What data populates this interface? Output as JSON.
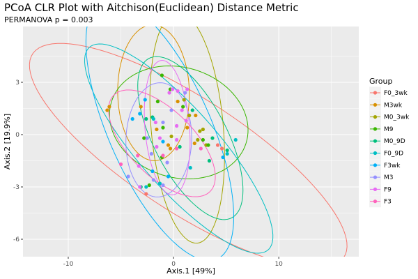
{
  "chart_data": {
    "type": "scatter",
    "title": "PCoA CLR Plot with Aitchison(Euclidean) Distance Metric",
    "subtitle": "PERMANOVA p = 0.003",
    "xlabel": "Axis.1  [49%]",
    "ylabel": "Axis.2  [19.9%]",
    "xlim": [
      -14.3,
      17.6
    ],
    "ylim": [
      -7.0,
      6.2
    ],
    "xticks": [
      -10,
      0,
      10
    ],
    "xtick_labels": [
      "-10",
      "0",
      "10"
    ],
    "yticks": [
      -6,
      -3,
      0,
      3
    ],
    "ytick_labels": [
      "-6",
      "-3",
      "0",
      "3"
    ],
    "grid": true,
    "legend": {
      "title": "Group",
      "position": "right"
    },
    "series": [
      {
        "name": "F0_3wk",
        "color": "#F8766D",
        "points": [
          [
            -2.6,
            -3.4
          ],
          [
            4.2,
            -0.6
          ],
          [
            4.6,
            -0.8
          ]
        ],
        "ellipse": {
          "cx": 1.4,
          "cy": -1.2,
          "rx": 16.0,
          "ry": 3.6,
          "angle": -20
        }
      },
      {
        "name": "M3wk",
        "color": "#D89000",
        "points": [
          [
            -6.3,
            1.4
          ],
          [
            -6.1,
            1.6
          ],
          [
            -3.1,
            1.6
          ],
          [
            0.4,
            1.9
          ],
          [
            2.1,
            1.1
          ],
          [
            1.3,
            0.4
          ],
          [
            2.0,
            -0.5
          ],
          [
            -0.5,
            -0.6
          ],
          [
            -0.3,
            -0.8
          ],
          [
            -1.6,
            0.3
          ]
        ],
        "ellipse": {
          "cx": -1.9,
          "cy": 2.4,
          "rx": 3.4,
          "ry": 3.9,
          "angle": 5
        }
      },
      {
        "name": "M0_3wk",
        "color": "#A3A500",
        "points": [
          [
            1.0,
            2.0
          ],
          [
            1.5,
            1.1
          ],
          [
            2.5,
            0.2
          ],
          [
            2.8,
            0.3
          ],
          [
            3.1,
            -0.6
          ],
          [
            -0.2,
            -0.1
          ],
          [
            2.3,
            -0.3
          ]
        ],
        "ellipse": {
          "cx": 1.3,
          "cy": 0.4,
          "rx": 3.4,
          "ry": 6.7,
          "angle": 10
        }
      },
      {
        "name": "M9",
        "color": "#39B600",
        "points": [
          [
            -1.1,
            3.4
          ],
          [
            -0.3,
            2.6
          ],
          [
            -1.5,
            1.9
          ],
          [
            0.9,
            1.6
          ],
          [
            -2.8,
            -0.2
          ],
          [
            -1.0,
            0.4
          ],
          [
            2.8,
            -0.3
          ],
          [
            -1.1,
            -1.3
          ],
          [
            -2.3,
            -2.9
          ],
          [
            3.3,
            -0.6
          ]
        ],
        "ellipse": {
          "cx": 0.5,
          "cy": 0.7,
          "rx": 6.6,
          "ry": 3.2,
          "angle": -5
        }
      },
      {
        "name": "M0_9D",
        "color": "#00BF7D",
        "points": [
          [
            1.8,
            1.4
          ],
          [
            -2.6,
            0.9
          ],
          [
            -2.0,
            1.0
          ],
          [
            0.6,
            -0.7
          ],
          [
            3.7,
            -0.2
          ],
          [
            5.1,
            -0.9
          ],
          [
            -3.1,
            -3.0
          ],
          [
            3.4,
            -1.5
          ]
        ],
        "ellipse": {
          "cx": 1.6,
          "cy": -0.2,
          "rx": 6.2,
          "ry": 2.9,
          "angle": -42
        }
      },
      {
        "name": "F0_9D",
        "color": "#00BFC4",
        "points": [
          [
            -1.9,
            0.9
          ],
          [
            5.9,
            -0.3
          ],
          [
            1.6,
            -1.9
          ],
          [
            5.1,
            -1.1
          ],
          [
            -1.3,
            -2.8
          ],
          [
            -2.6,
            -3.0
          ]
        ],
        "ellipse": {
          "cx": 0.5,
          "cy": -0.8,
          "rx": 10.4,
          "ry": 2.8,
          "angle": -32
        }
      },
      {
        "name": "F3wk",
        "color": "#00B0F6",
        "points": [
          [
            -2.7,
            2.0
          ],
          [
            -3.2,
            1.2
          ],
          [
            -3.9,
            0.9
          ],
          [
            -1.0,
            -0.4
          ],
          [
            -2.0,
            -2.1
          ],
          [
            -0.5,
            -2.4
          ],
          [
            4.7,
            -1.3
          ]
        ],
        "ellipse": {
          "cx": -1.3,
          "cy": 0.3,
          "rx": 9.4,
          "ry": 4.2,
          "angle": -48
        }
      },
      {
        "name": "M3",
        "color": "#9590FF",
        "points": [
          [
            1.1,
            2.4
          ],
          [
            -0.2,
            1.4
          ],
          [
            -1.0,
            0.7
          ],
          [
            -2.5,
            -0.2
          ],
          [
            -2.1,
            -1.1
          ],
          [
            -0.6,
            -1.6
          ],
          [
            -4.3,
            -2.4
          ],
          [
            -1.9,
            -2.6
          ],
          [
            -1.0,
            -2.9
          ]
        ],
        "ellipse": {
          "cx": -1.4,
          "cy": -0.3,
          "rx": 3.1,
          "ry": 3.3,
          "angle": -20
        }
      },
      {
        "name": "F9",
        "color": "#E76BF3",
        "points": [
          [
            -0.1,
            2.6
          ],
          [
            -0.4,
            2.4
          ],
          [
            0.4,
            2.5
          ],
          [
            1.3,
            2.6
          ],
          [
            0.8,
            1.4
          ],
          [
            1.2,
            0.8
          ],
          [
            0.3,
            0.5
          ],
          [
            -1.7,
            0.7
          ],
          [
            -1.3,
            -0.2
          ],
          [
            -1.6,
            -0.7
          ],
          [
            0.3,
            -0.3
          ],
          [
            -3.3,
            -1.8
          ],
          [
            -3.2,
            -3.0
          ]
        ],
        "ellipse": {
          "cx": -0.6,
          "cy": 0.4,
          "rx": 2.1,
          "ry": 3.9,
          "angle": 10
        }
      },
      {
        "name": "F3",
        "color": "#FF62BC",
        "points": [
          [
            -5.0,
            -1.7
          ],
          [
            -3.4,
            -1.2
          ],
          [
            -1.0,
            -1.2
          ],
          [
            0.3,
            -0.8
          ],
          [
            2.6,
            -0.8
          ]
        ],
        "ellipse": {
          "cx": -1.1,
          "cy": -0.5,
          "rx": 5.5,
          "ry": 2.2,
          "angle": -25
        }
      }
    ]
  }
}
